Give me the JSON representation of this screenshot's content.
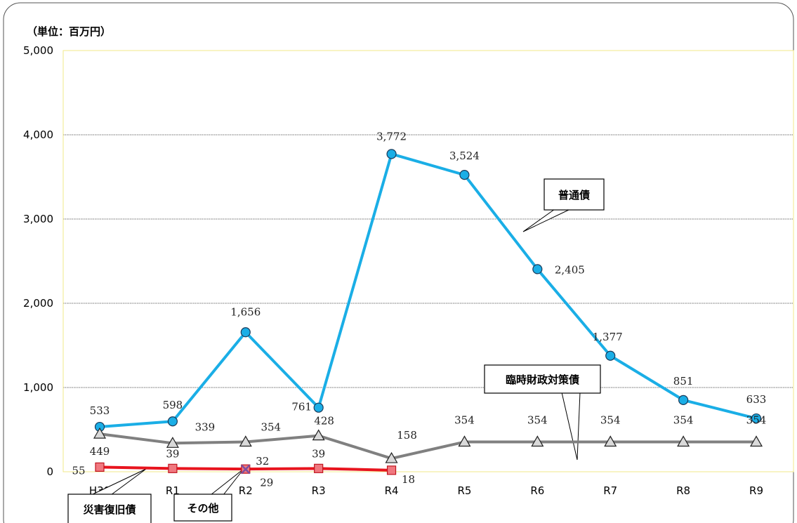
{
  "chart_data": {
    "type": "line",
    "unit_label": "（単位：百万円）",
    "categories": [
      "H30",
      "R1",
      "R2",
      "R3",
      "R4",
      "R5",
      "R6",
      "R7",
      "R8",
      "R9"
    ],
    "ylim": [
      0,
      5000
    ],
    "yticks": [
      "0",
      "1,000",
      "2,000",
      "3,000",
      "4,000",
      "5,000"
    ],
    "grid": true,
    "series": [
      {
        "name": "普通債",
        "color": "#1AAEE6",
        "marker": "circle",
        "values": [
          533,
          598,
          1656,
          761,
          3772,
          3524,
          2405,
          1377,
          851,
          633
        ],
        "labels": [
          "533",
          "598",
          "1,656",
          "761",
          "3,772",
          "3,524",
          "2,405",
          "1,377",
          "851",
          "633"
        ]
      },
      {
        "name": "臨時財政対策債",
        "color": "#808080",
        "marker": "triangle",
        "values": [
          449,
          339,
          354,
          428,
          158,
          354,
          354,
          354,
          354,
          354
        ],
        "labels": [
          "449",
          "339",
          "354",
          "428",
          "158",
          "354",
          "354",
          "354",
          "354",
          "354"
        ]
      },
      {
        "name": "災害復旧債",
        "color": "#E8141E",
        "marker": "square",
        "values": [
          55,
          39,
          32,
          39,
          18,
          null,
          null,
          null,
          null,
          null
        ],
        "labels": [
          "55",
          "39",
          "32",
          "39",
          "18",
          "",
          "",
          "",
          "",
          ""
        ]
      },
      {
        "name": "その他",
        "color": "#7B4FA0",
        "marker": "x",
        "values": [
          null,
          null,
          29,
          null,
          null,
          null,
          null,
          null,
          null,
          null
        ],
        "labels": [
          "",
          "",
          "29",
          "",
          "",
          "",
          "",
          "",
          "",
          ""
        ]
      }
    ],
    "callouts": [
      "普通債",
      "臨時財政対策債",
      "災害復旧債",
      "その他"
    ]
  }
}
